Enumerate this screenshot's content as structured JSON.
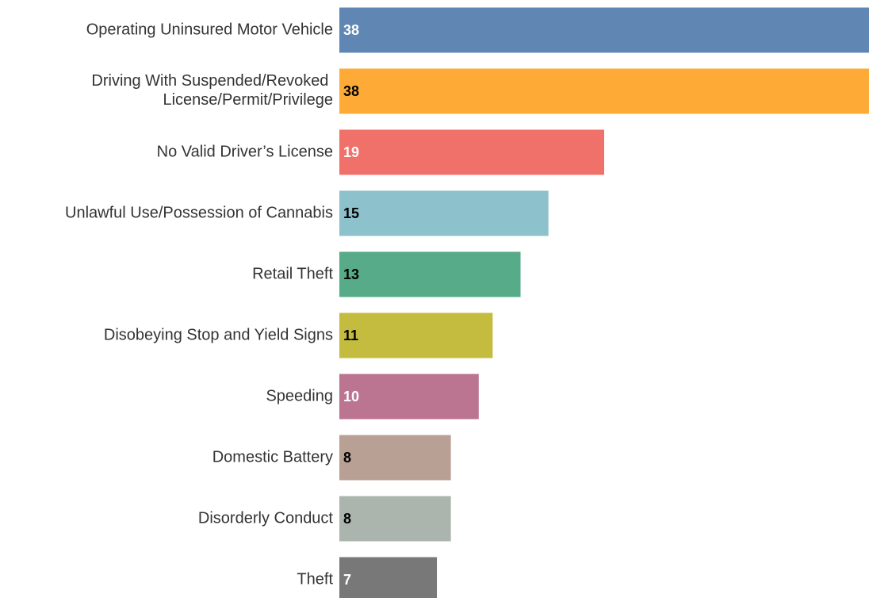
{
  "chart_data": {
    "type": "bar",
    "orientation": "horizontal",
    "categories": [
      "Operating Uninsured Motor Vehicle",
      "Driving With Suspended/Revoked License/Permit/Privilege",
      "No Valid Driver’s License",
      "Unlawful Use/Possession of Cannabis",
      "Retail Theft",
      "Disobeying Stop and Yield Signs",
      "Speeding",
      "Domestic Battery",
      "Disorderly Conduct",
      "Theft"
    ],
    "values": [
      38,
      38,
      19,
      15,
      13,
      11,
      10,
      8,
      8,
      7
    ],
    "colors": [
      "#6087b4",
      "#fdab36",
      "#f0706a",
      "#8dc1cb",
      "#58ab88",
      "#c4bc3e",
      "#bb7591",
      "#b9a095",
      "#abb5ae",
      "#787878"
    ],
    "value_label_colors": [
      "#ffffff",
      "#000000",
      "#ffffff",
      "#000000",
      "#000000",
      "#000000",
      "#ffffff",
      "#000000",
      "#000000",
      "#ffffff"
    ],
    "xlim": [
      0,
      38
    ]
  }
}
